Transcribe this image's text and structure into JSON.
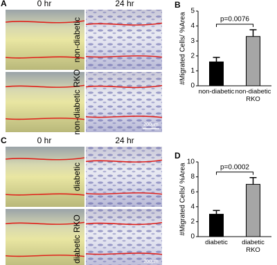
{
  "panels": [
    {
      "letter": "A",
      "time_labels": [
        "0 hr",
        "24 hr"
      ],
      "row_labels": [
        "non-diabetic",
        "non-diabetic RKO"
      ],
      "scale_bar": "200µm"
    },
    {
      "letter": "C",
      "time_labels": [
        "0 hr",
        "24 hr"
      ],
      "row_labels": [
        "diabetic",
        "diabetic RKO"
      ],
      "scale_bar": "200µm"
    }
  ],
  "chart_data": [
    {
      "type": "bar",
      "panel_label": "B",
      "ylabel": "#Migrated Cells/ %Area",
      "categories": [
        "non-diabetic",
        "non-diabetic RKO"
      ],
      "values": [
        1.6,
        3.3
      ],
      "errors": [
        0.3,
        0.45
      ],
      "colors": [
        "#000000",
        "#a6a6a6"
      ],
      "ylim": [
        0,
        5
      ],
      "yticks": [
        0,
        1,
        2,
        3,
        4,
        5
      ],
      "annotation": "p=0.0076"
    },
    {
      "type": "bar",
      "panel_label": "D",
      "ylabel": "#Migrated Cells/ %Area",
      "categories": [
        "diabetic",
        "diabetic RKO"
      ],
      "values": [
        3.0,
        7.0
      ],
      "errors": [
        0.5,
        0.9
      ],
      "colors": [
        "#000000",
        "#a6a6a6"
      ],
      "ylim": [
        0,
        10
      ],
      "yticks": [
        0,
        2,
        4,
        6,
        8,
        10
      ],
      "annotation": "p=0.0002"
    }
  ]
}
